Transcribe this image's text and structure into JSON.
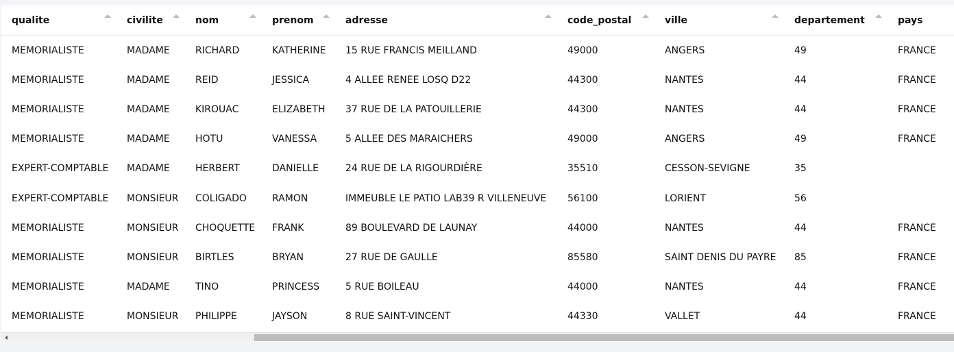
{
  "columns": [
    "qualite",
    "civilite",
    "nom",
    "prenom",
    "adresse",
    "code_postal",
    "ville",
    "departement",
    "pays"
  ],
  "rows": [
    [
      "MEMORIALISTE",
      "MADAME",
      "RICHARD",
      "KATHERINE",
      "15 RUE FRANCIS MEILLAND",
      "49000",
      "ANGERS",
      "49",
      "FRANCE"
    ],
    [
      "MEMORIALISTE",
      "MADAME",
      "REID",
      "JESSICA",
      "4 ALLEE RENEE LOSQ D22",
      "44300",
      "NANTES",
      "44",
      "FRANCE"
    ],
    [
      "MEMORIALISTE",
      "MADAME",
      "KIROUAC",
      "ELIZABETH",
      "37 RUE DE LA PATOUILLERIE",
      "44300",
      "NANTES",
      "44",
      "FRANCE"
    ],
    [
      "MEMORIALISTE",
      "MADAME",
      "HOTU",
      "VANESSA",
      "5 ALLEE DES MARAICHERS",
      "49000",
      "ANGERS",
      "49",
      "FRANCE"
    ],
    [
      "EXPERT-COMPTABLE",
      "MADAME",
      "HERBERT",
      "DANIELLE",
      "24 RUE DE LA RIGOURDIÈRE",
      "35510",
      "CESSON-SEVIGNE",
      "35",
      ""
    ],
    [
      "EXPERT-COMPTABLE",
      "MONSIEUR",
      "COLIGADO",
      "RAMON",
      "IMMEUBLE LE PATIO LAB39 R VILLENEUVE",
      "56100",
      "LORIENT",
      "56",
      ""
    ],
    [
      "MEMORIALISTE",
      "MONSIEUR",
      "CHOQUETTE",
      "FRANK",
      "89 BOULEVARD DE LAUNAY",
      "44000",
      "NANTES",
      "44",
      "FRANCE"
    ],
    [
      "MEMORIALISTE",
      "MONSIEUR",
      "BIRTLES",
      "BRYAN",
      "27 RUE DE GAULLE",
      "85580",
      "SAINT DENIS DU PAYRE",
      "85",
      "FRANCE"
    ],
    [
      "MEMORIALISTE",
      "MADAME",
      "TINO",
      "PRINCESS",
      "5 RUE BOILEAU",
      "44000",
      "NANTES",
      "44",
      "FRANCE"
    ],
    [
      "MEMORIALISTE",
      "MONSIEUR",
      "PHILIPPE",
      "JAYSON",
      "8 RUE SAINT-VINCENT",
      "44330",
      "VALLET",
      "44",
      "FRANCE"
    ]
  ],
  "sort_icon": "sort-ascending-icon"
}
